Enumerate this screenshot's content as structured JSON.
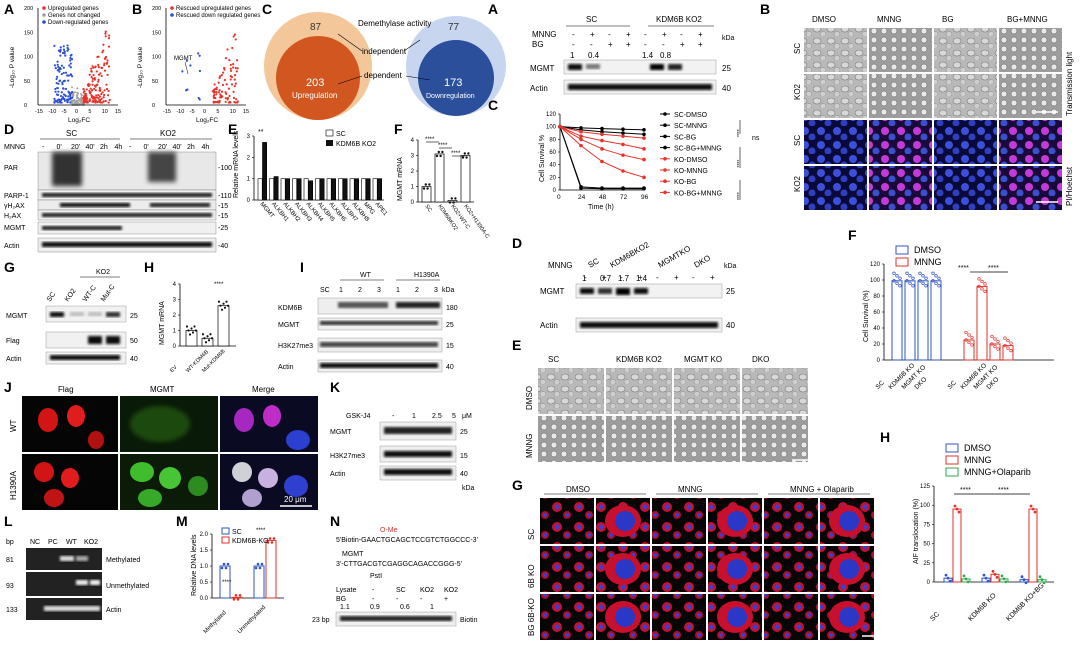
{
  "panels": {
    "A": {
      "letter": "A",
      "legend": [
        "Upregulated genes",
        "Genes not changed",
        "Down-regulated genes"
      ],
      "xlabel": "Log₂FC",
      "ylabel": "-Log₁₀ P value",
      "xticks": [
        "-15",
        "-10",
        "-5",
        "0",
        "5",
        "10",
        "15"
      ],
      "yticks": [
        "0",
        "50",
        "100",
        "150",
        "200"
      ]
    },
    "B": {
      "letter": "B",
      "legend": [
        "Rescued upregulated genes",
        "Rescued down regulated genes"
      ],
      "gene": "MGMT",
      "xlabel": "Log₂FC",
      "ylabel": "-Log₁₀ P value",
      "xticks": [
        "-15",
        "-10",
        "-5",
        "0",
        "5",
        "10",
        "15"
      ],
      "yticks": [
        "0",
        "50",
        "100",
        "150",
        "200"
      ]
    },
    "C": {
      "letter": "C",
      "left_outer": "87",
      "left_inner": "203",
      "left_label": "Upregulation",
      "right_outer": "77",
      "right_inner": "173",
      "right_label": "Downregulation",
      "top": "Demethylase activity",
      "mid1": "independent",
      "mid2": "dependent"
    },
    "D": {
      "letter": "D",
      "treat": "MNNG",
      "group1": "SC",
      "group2": "KO2",
      "lanes": [
        "-",
        "0'",
        "20'",
        "40'",
        "2h",
        "4h",
        "-",
        "0'",
        "20'",
        "40'",
        "2h",
        "4h"
      ],
      "rows": [
        "PAR",
        "PARP-1",
        "γH₂AX",
        "H₂AX",
        "MGMT",
        "Actin"
      ],
      "kda": [
        "-100",
        "-110",
        "-15",
        "-15",
        "-25",
        "-40"
      ]
    },
    "E": {
      "letter": "E",
      "ylabel": "Relative mRNA levels",
      "legend": [
        "SC",
        "KDM6B KO2"
      ],
      "genes": [
        "MGMT",
        "ALKBH1",
        "ALKBH2",
        "ALKBH3",
        "ALKBH4",
        "ALKBH5",
        "ALKBH6",
        "ALKBH7",
        "ALKBH8",
        "MPG",
        "APE1"
      ],
      "yticks": [
        "0",
        "1",
        "2",
        "3"
      ],
      "star": "**"
    },
    "F": {
      "letter": "F",
      "ylabel": "MGMT mRNA",
      "groups": [
        "SC",
        "KDM6BKO2",
        "KO2+WT-C",
        "KO2+H1390A-C"
      ],
      "yticks": [
        "0",
        "1",
        "2",
        "3",
        "4"
      ],
      "sig": "****"
    },
    "G": {
      "letter": "G",
      "ko": "KO2",
      "lanes": [
        "SC",
        "KO2",
        "WT-C",
        "Mut-C"
      ],
      "rows": [
        "MGMT",
        "Flag",
        "Actin"
      ],
      "kda": [
        "25",
        "50",
        "40"
      ]
    },
    "H": {
      "letter": "H",
      "ylabel": "MGMT mRNA",
      "groups": [
        "EV",
        "WT-KDM6B",
        "Mut-KDM6B"
      ],
      "yticks": [
        "0",
        "1",
        "2",
        "3",
        "4"
      ],
      "sig": "****"
    },
    "I": {
      "letter": "I",
      "g1": "WT",
      "g2": "H1390A",
      "lanes": [
        "SC",
        "1",
        "2",
        "3",
        "1",
        "2",
        "3"
      ],
      "rows": [
        "KDM6B",
        "MGMT",
        "H3K27me3",
        "Actin"
      ],
      "kda": [
        "180",
        "25",
        "15",
        "40"
      ],
      "unit": "kDa"
    },
    "J": {
      "letter": "J",
      "cols": [
        "Flag",
        "MGMT",
        "Merge"
      ],
      "rows": [
        "WT",
        "H1390A"
      ],
      "scale": "20 μm"
    },
    "K": {
      "letter": "K",
      "treat": "GSK-J4",
      "doses": [
        "-",
        "1",
        "2.5",
        "5"
      ],
      "unit": "μM",
      "rows": [
        "MGMT",
        "H3K27me3",
        "Actin"
      ],
      "kda": [
        "25",
        "15",
        "40"
      ],
      "kda_label": "kDa"
    },
    "L": {
      "letter": "L",
      "unit": "bp",
      "lanes": [
        "NC",
        "PC",
        "WT",
        "KO2"
      ],
      "sizes": [
        "81",
        "93",
        "133"
      ],
      "rows": [
        "Methylated",
        "Unmethylated",
        "Actin"
      ]
    },
    "M": {
      "letter": "M",
      "ylabel": "Relative DNA levels",
      "legend": [
        "SC",
        "KDM6B-KO"
      ],
      "groups": [
        "Methylated",
        "Unmethylated"
      ],
      "yticks": [
        "0.0",
        "0.5",
        "1.0",
        "1.5",
        "2.0"
      ],
      "sig": "****"
    },
    "N": {
      "letter": "N",
      "seq1": "5'Biotin-GAACTGCAGCTCCGTCTGGCCC-3'",
      "seq2": "3'-CTTGACGTCGAGGCAGACCGGG-5'",
      "methyl": "O-Me",
      "mgmt": "MGMT",
      "pstl": "PstI",
      "lysate_label": "Lysate",
      "bg_label": "BG",
      "lysate": [
        "-",
        "SC",
        "KO2",
        "KO2"
      ],
      "bg": [
        "-",
        "-",
        "-",
        "+"
      ],
      "values": [
        "1.1",
        "0.9",
        "0.6",
        "1"
      ],
      "size": "23 bp",
      "row": "Biotin"
    },
    "A2": {
      "letter": "A",
      "g1": "SC",
      "g2": "KDM6B KO2",
      "treat1": "MNNG",
      "treat2": "BG",
      "mnng": [
        "-",
        "+",
        "-",
        "+",
        "-",
        "+",
        "-",
        "+"
      ],
      "bg": [
        "-",
        "-",
        "+",
        "+",
        "-",
        "-",
        "+",
        "+"
      ],
      "values": [
        "1",
        "0.4",
        "",
        "",
        "1.4",
        "0.8",
        "",
        ""
      ],
      "rows": [
        "MGMT",
        "Actin"
      ],
      "kda": [
        "25",
        "40"
      ],
      "unit": "kDa"
    },
    "B2": {
      "letter": "B",
      "cols": [
        "DMSO",
        "MNNG",
        "BG",
        "BG+MNNG"
      ],
      "rows": [
        "SC",
        "KO2",
        "SC",
        "KO2"
      ],
      "side1": "Transmission light",
      "side2": "PI/Hoechst"
    },
    "C2": {
      "letter": "C",
      "ylabel": "Cell Survival %",
      "xlabel": "Time (h)",
      "xticks": [
        "0",
        "24",
        "48",
        "72",
        "96"
      ],
      "yticks": [
        "0",
        "20",
        "40",
        "60",
        "80",
        "100",
        "120"
      ],
      "ns": "ns",
      "sig": "****"
    },
    "D2": {
      "letter": "D",
      "groups": [
        "SC",
        "KDM6BKO2",
        "MGMTKO",
        "DKO"
      ],
      "treat": "MNNG",
      "pm": [
        "-",
        "+",
        "-",
        "+",
        "-",
        "+",
        "-",
        "+"
      ],
      "values": [
        "1",
        "0.7",
        "1.7",
        "1.4",
        "",
        "",
        "",
        ""
      ],
      "rows": [
        "MGMT",
        "Actin"
      ],
      "kda": [
        "25",
        "40"
      ],
      "unit": "kDa"
    },
    "E2": {
      "letter": "E",
      "cols": [
        "SC",
        "KDM6B KO2",
        "MGMT KO",
        "DKO"
      ],
      "rows": [
        "DMSO",
        "MNNG"
      ]
    },
    "F2": {
      "letter": "F",
      "ylabel": "Cell Survival (%)",
      "legend": [
        "DMSO",
        "MNNG"
      ],
      "groups": [
        "SC",
        "KDM6B KO",
        "MGMT KO",
        "DKO",
        "SC",
        "KDM6B KO",
        "MGMT KO",
        "DKO"
      ],
      "yticks": [
        "0",
        "20",
        "40",
        "60",
        "80",
        "100",
        "120"
      ],
      "sig": "****"
    },
    "G2": {
      "letter": "G",
      "cols": [
        "DMSO",
        "MNNG",
        "MNNG + Olaparib"
      ],
      "rows": [
        "SC",
        "6B KO",
        "BG 6B-KO"
      ]
    },
    "H2": {
      "letter": "H",
      "ylabel": "AIF translocation (%)",
      "legend": [
        "DMSO",
        "MNNG",
        "MNNG+Olaparib"
      ],
      "groups": [
        "SC",
        "KDM6B KO",
        "KDM6B KO+BG"
      ],
      "yticks": [
        "0",
        "25",
        "50",
        "75",
        "100",
        "125"
      ],
      "sig": "****"
    }
  },
  "chart_data": [
    {
      "type": "scatter",
      "title": "",
      "xlabel": "Log₂FC",
      "ylabel": "-Log₁₀ P value",
      "xlim": [
        -15,
        15
      ],
      "ylim": [
        0,
        200
      ],
      "series": [
        {
          "name": "Upregulated genes",
          "color": "#e8322a"
        },
        {
          "name": "Genes not changed",
          "color": "#a0a0a0"
        },
        {
          "name": "Down-regulated genes",
          "color": "#2a4fd6"
        }
      ]
    },
    {
      "type": "bar",
      "title": "",
      "ylabel": "Relative mRNA levels",
      "categories": [
        "MGMT",
        "ALKBH1",
        "ALKBH2",
        "ALKBH3",
        "ALKBH4",
        "ALKBH5",
        "ALKBH6",
        "ALKBH7",
        "ALKBH8",
        "MPG",
        "APE1"
      ],
      "series": [
        {
          "name": "SC",
          "values": [
            1,
            1,
            1,
            1,
            1,
            1,
            1,
            1,
            1,
            1,
            1
          ]
        },
        {
          "name": "KDM6B KO2",
          "values": [
            2.7,
            1.1,
            1.0,
            1.0,
            0.9,
            1.0,
            1.0,
            1.0,
            1.0,
            1.0,
            1.0
          ]
        }
      ],
      "ylim": [
        0,
        3
      ]
    },
    {
      "type": "bar",
      "title": "",
      "ylabel": "MGMT mRNA",
      "categories": [
        "SC",
        "KDM6BKO2",
        "KO2+WT-C",
        "KO2+H1390A-C"
      ],
      "values": [
        1.0,
        3.1,
        0.1,
        3.0
      ],
      "ylim": [
        0,
        4
      ]
    },
    {
      "type": "bar",
      "title": "",
      "ylabel": "MGMT mRNA",
      "categories": [
        "EV",
        "WT-KDM6B",
        "Mut-KDM6B"
      ],
      "values": [
        1.0,
        0.5,
        2.6
      ],
      "ylim": [
        0,
        4
      ]
    },
    {
      "type": "bar",
      "title": "",
      "ylabel": "Relative DNA levels",
      "categories": [
        "Methylated",
        "Unmethylated"
      ],
      "series": [
        {
          "name": "SC",
          "values": [
            1.0,
            1.0
          ]
        },
        {
          "name": "KDM6B-KO",
          "values": [
            0.02,
            1.8
          ]
        }
      ],
      "ylim": [
        0,
        2
      ]
    },
    {
      "type": "line",
      "title": "",
      "xlabel": "Time (h)",
      "ylabel": "Cell Survival %",
      "x": [
        0,
        24,
        48,
        72,
        96
      ],
      "ylim": [
        0,
        120
      ],
      "series": [
        {
          "name": "SC-DMSO",
          "values": [
            100,
            98,
            97,
            96,
            95
          ]
        },
        {
          "name": "SC-MNNG",
          "values": [
            100,
            5,
            3,
            3,
            3
          ]
        },
        {
          "name": "SC-BG",
          "values": [
            100,
            95,
            92,
            90,
            88
          ]
        },
        {
          "name": "SC-BG+MNNG",
          "values": [
            100,
            3,
            2,
            2,
            2
          ]
        },
        {
          "name": "KO-DMSO",
          "values": [
            100,
            92,
            88,
            85,
            82
          ]
        },
        {
          "name": "KO-MNNG",
          "values": [
            100,
            85,
            78,
            72,
            65
          ]
        },
        {
          "name": "KO-BG",
          "values": [
            100,
            80,
            65,
            55,
            48
          ]
        },
        {
          "name": "KO-BG+MNNG",
          "values": [
            100,
            70,
            45,
            30,
            20
          ]
        }
      ]
    },
    {
      "type": "bar",
      "title": "",
      "ylabel": "Cell Survival (%)",
      "categories": [
        "SC",
        "KDM6B KO",
        "MGMT KO",
        "DKO"
      ],
      "series": [
        {
          "name": "DMSO",
          "values": [
            99,
            99,
            99,
            99
          ]
        },
        {
          "name": "MNNG",
          "values": [
            25,
            92,
            20,
            18
          ]
        }
      ],
      "ylim": [
        0,
        120
      ]
    },
    {
      "type": "bar",
      "title": "",
      "ylabel": "AIF translocation (%)",
      "categories": [
        "SC",
        "KDM6B KO",
        "KDM6B KO+BG"
      ],
      "series": [
        {
          "name": "DMSO",
          "values": [
            5,
            5,
            3
          ]
        },
        {
          "name": "MNNG",
          "values": [
            95,
            10,
            95
          ]
        },
        {
          "name": "MNNG+Olaparib",
          "values": [
            4,
            4,
            3
          ]
        }
      ],
      "ylim": [
        0,
        125
      ]
    }
  ]
}
